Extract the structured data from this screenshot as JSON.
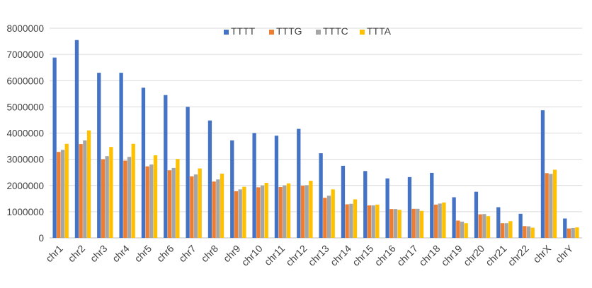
{
  "chart_data": {
    "type": "bar",
    "title": "",
    "xlabel": "",
    "ylabel": "",
    "ylim": [
      0,
      8000000
    ],
    "yticks": [
      0,
      1000000,
      2000000,
      3000000,
      4000000,
      5000000,
      6000000,
      7000000,
      8000000
    ],
    "ytick_labels": [
      "0",
      "1000000",
      "2000000",
      "3000000",
      "4000000",
      "5000000",
      "6000000",
      "7000000",
      "8000000"
    ],
    "grid": true,
    "legend_position": "top",
    "categories": [
      "chr1",
      "chr2",
      "chr3",
      "chr4",
      "chr5",
      "chr6",
      "chr7",
      "chr8",
      "chr9",
      "chr10",
      "chr11",
      "chr12",
      "chr13",
      "chr14",
      "chr15",
      "chr16",
      "chr17",
      "chr18",
      "chr19",
      "chr20",
      "chr21",
      "chr22",
      "chrX",
      "chrY"
    ],
    "series": [
      {
        "name": "TTTT",
        "color": "#4472c4",
        "values": [
          6880000,
          7550000,
          6300000,
          6300000,
          5730000,
          5450000,
          5000000,
          4480000,
          3720000,
          4000000,
          3900000,
          4160000,
          3230000,
          2750000,
          2550000,
          2270000,
          2320000,
          2480000,
          1550000,
          1760000,
          1170000,
          920000,
          4870000,
          740000
        ]
      },
      {
        "name": "TTTG",
        "color": "#ed7d31",
        "values": [
          3280000,
          3580000,
          3000000,
          2950000,
          2730000,
          2580000,
          2350000,
          2150000,
          1780000,
          1930000,
          1940000,
          1990000,
          1530000,
          1280000,
          1240000,
          1100000,
          1110000,
          1270000,
          660000,
          900000,
          560000,
          450000,
          2470000,
          360000
        ]
      },
      {
        "name": "TTTC",
        "color": "#a5a5a5",
        "values": [
          3360000,
          3720000,
          3120000,
          3090000,
          2800000,
          2670000,
          2420000,
          2230000,
          1850000,
          2000000,
          2000000,
          2010000,
          1610000,
          1300000,
          1240000,
          1100000,
          1110000,
          1310000,
          620000,
          910000,
          560000,
          440000,
          2440000,
          380000
        ]
      },
      {
        "name": "TTTA",
        "color": "#ffc000",
        "values": [
          3590000,
          4100000,
          3470000,
          3590000,
          3150000,
          3010000,
          2650000,
          2450000,
          1950000,
          2100000,
          2080000,
          2180000,
          1850000,
          1470000,
          1270000,
          1070000,
          1030000,
          1350000,
          560000,
          830000,
          640000,
          390000,
          2600000,
          400000
        ]
      }
    ]
  }
}
